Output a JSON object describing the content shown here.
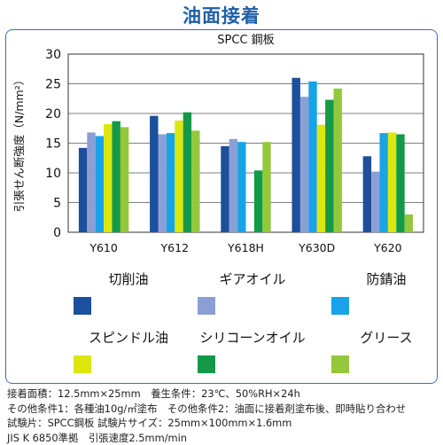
{
  "title": "油面接着",
  "chart_data": {
    "type": "bar",
    "title": "SPCC 鋼板",
    "ylabel": "引張せん断強度（N/mm²）",
    "ylim": [
      0,
      30
    ],
    "yticks": [
      0,
      5,
      10,
      15,
      20,
      25,
      30
    ],
    "grid": true,
    "categories": [
      "Y610",
      "Y612",
      "Y618H",
      "Y630D",
      "Y620"
    ],
    "series": [
      {
        "name": "切削油",
        "color": "#1c4f9c",
        "values": [
          14.2,
          19.6,
          14.5,
          26.0,
          12.8
        ]
      },
      {
        "name": "ギアオイル",
        "color": "#8c9fd4",
        "values": [
          16.8,
          16.5,
          15.7,
          22.8,
          10.2
        ]
      },
      {
        "name": "防錆油",
        "color": "#17a3e8",
        "values": [
          16.2,
          16.7,
          15.2,
          25.4,
          16.7
        ]
      },
      {
        "name": "スピンドル油",
        "color": "#dde60e",
        "values": [
          18.2,
          18.8,
          0,
          18.1,
          16.8
        ]
      },
      {
        "name": "シリコーンオイル",
        "color": "#139a48",
        "values": [
          18.7,
          20.2,
          10.4,
          22.3,
          16.5
        ]
      },
      {
        "name": "グリース",
        "color": "#93c83b",
        "values": [
          17.7,
          17.1,
          15.2,
          24.2,
          3.0
        ]
      }
    ]
  },
  "footer": {
    "line1": "接着面積：12.5mm×25mm　養生条件：23℃、50%RH×24h",
    "line2": "その他条件1：各種油10g/㎡塗布　その他条件2：油面に接着剤塗布後、即時貼り合わせ",
    "line3": "試験片：SPCC鋼板 試験片サイズ：25mm×100mm×1.6mm",
    "line4": "JIS K 6850準拠　引張速度2.5mm/min"
  }
}
